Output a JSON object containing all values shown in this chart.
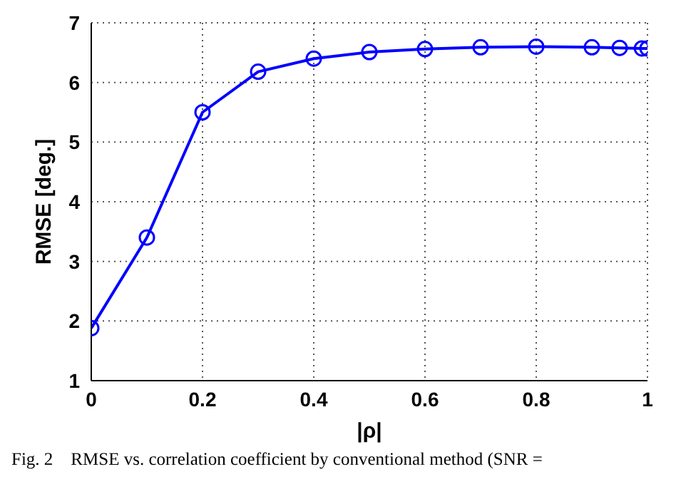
{
  "chart_data": {
    "type": "line",
    "xlabel": "|ρ|",
    "ylabel": "RMSE [deg.]",
    "x": [
      0,
      0.1,
      0.2,
      0.3,
      0.4,
      0.5,
      0.6,
      0.7,
      0.8,
      0.9,
      0.95,
      0.99,
      1
    ],
    "series": [
      {
        "color": "#0000ff",
        "values": [
          1.88,
          3.4,
          5.5,
          6.18,
          6.4,
          6.51,
          6.56,
          6.59,
          6.6,
          6.59,
          6.58,
          6.57,
          6.57
        ]
      }
    ],
    "xlim": [
      0,
      1
    ],
    "xticks": [
      0,
      0.2,
      0.4,
      0.6,
      0.8,
      1
    ],
    "ylim": [
      1,
      7
    ],
    "yticks": [
      1,
      2,
      3,
      4,
      5,
      6,
      7
    ],
    "grid": true,
    "marker": "circle",
    "line_style": "solid",
    "annotations": [
      "Fig. 2    RMSE vs. correlation coefficient by conventional method (SNR ="
    ]
  }
}
